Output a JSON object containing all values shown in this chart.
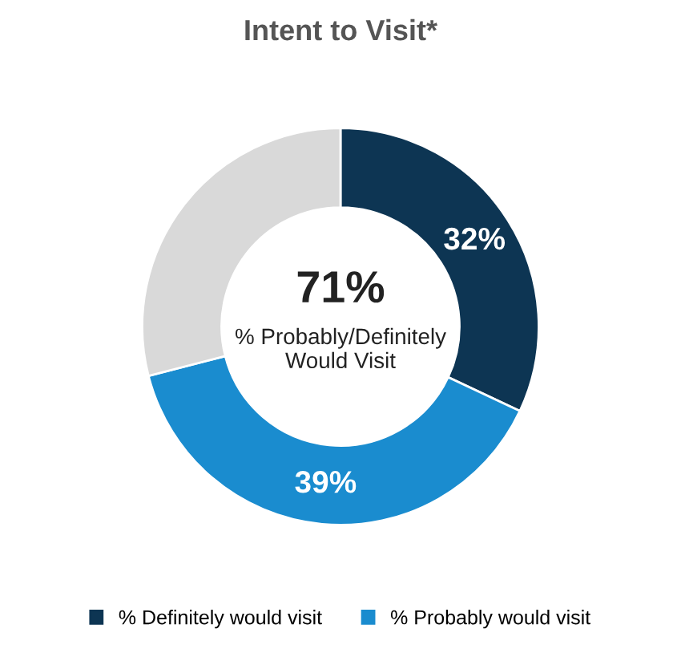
{
  "chart_data": {
    "type": "donut",
    "title": "Intent to Visit*",
    "categories": [
      "% Definitely would visit",
      "% Probably would visit",
      null
    ],
    "values": [
      32,
      39,
      29
    ],
    "colors": [
      "#0d3553",
      "#1a8ccf",
      "#d9d9d9"
    ],
    "value_labels": [
      "32%",
      "39%",
      null
    ],
    "annotations": [
      "71%",
      "% Probably/Definitely\nWould Visit"
    ],
    "legend": "bottom"
  }
}
